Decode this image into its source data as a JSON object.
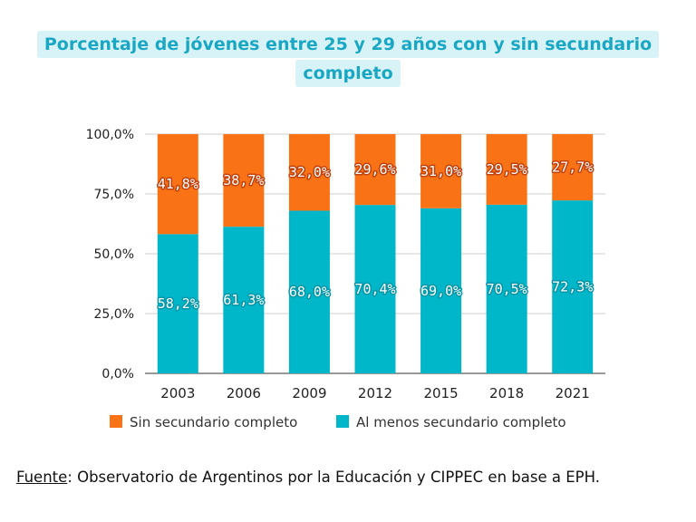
{
  "chart_data": {
    "type": "bar",
    "stacked": true,
    "title_lines": [
      "Porcentaje de jóvenes entre 25 y 29 años con y sin secundario",
      "completo"
    ],
    "categories": [
      "2003",
      "2006",
      "2009",
      "2012",
      "2015",
      "2018",
      "2021"
    ],
    "series": [
      {
        "name": "Al menos secundario completo",
        "color": "#00b7c9",
        "values": [
          58.2,
          61.3,
          68.0,
          70.4,
          69.0,
          70.5,
          72.3
        ],
        "labels": [
          "58,2%",
          "61,3%",
          "68,0%",
          "70,4%",
          "69,0%",
          "70,5%",
          "72,3%"
        ]
      },
      {
        "name": "Sin secundario completo",
        "color": "#f97316",
        "values": [
          41.8,
          38.7,
          32.0,
          29.6,
          31.0,
          29.5,
          27.7
        ],
        "labels": [
          "41,8%",
          "38,7%",
          "32,0%",
          "29,6%",
          "31,0%",
          "29,5%",
          "27,7%"
        ]
      }
    ],
    "legend_order": [
      "Sin secundario completo",
      "Al menos secundario completo"
    ],
    "legend": "bottom",
    "y_ticks": [
      0,
      25,
      50,
      75,
      100
    ],
    "y_tick_labels": [
      "0,0%",
      "25,0%",
      "50,0%",
      "75,0%",
      "100,0%"
    ],
    "ylim": [
      0,
      100
    ],
    "xlabel": "",
    "ylabel": "",
    "grid": true
  },
  "source": {
    "label": "Fuente",
    "text": ": Observatorio de Argentinos por la Educación y CIPPEC en base a EPH."
  }
}
